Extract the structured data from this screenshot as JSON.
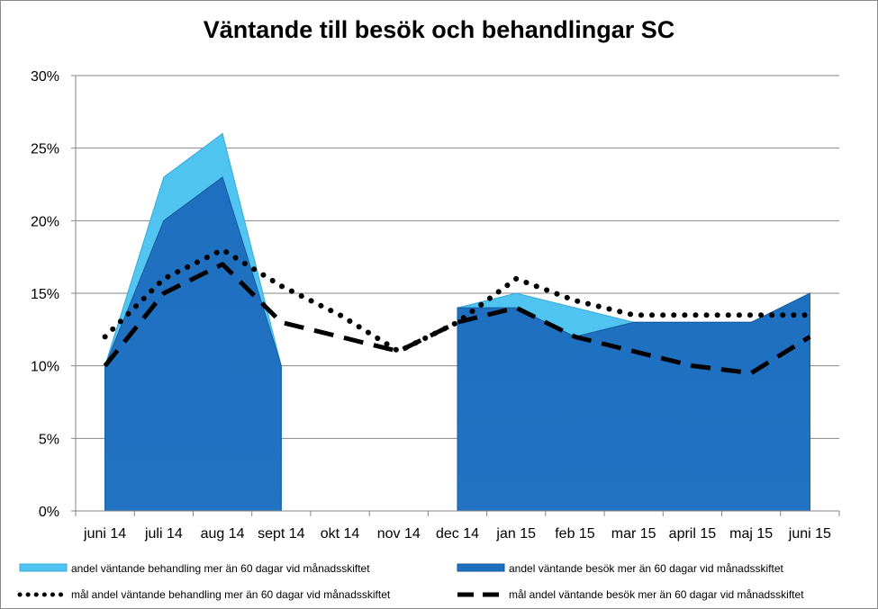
{
  "chart_data": {
    "type": "area",
    "title": "Väntande till besök och behandlingar SC",
    "xlabel": "",
    "ylabel": "",
    "ylim": [
      0,
      0.3
    ],
    "y_ticks": [
      "0%",
      "5%",
      "10%",
      "15%",
      "20%",
      "25%",
      "30%"
    ],
    "y_tick_values": [
      0,
      0.05,
      0.1,
      0.15,
      0.2,
      0.25,
      0.3
    ],
    "grid": true,
    "legend_position": "bottom",
    "categories": [
      "juni 14",
      "juli 14",
      "aug 14",
      "sept 14",
      "okt 14",
      "nov 14",
      "dec 14",
      "jan 15",
      "feb 15",
      "mar 15",
      "april 15",
      "maj 15",
      "juni 15"
    ],
    "series": [
      {
        "name": "andel väntande behandling mer än 60 dagar vid månadsskiftet",
        "kind": "area",
        "color": "#4fc4f0",
        "values": [
          0.1,
          0.23,
          0.26,
          0.1,
          null,
          null,
          0.14,
          0.15,
          0.14,
          0.13,
          0.13,
          0.13,
          0.15
        ]
      },
      {
        "name": "andel väntande besök mer än 60 dagar vid månadsskiftet",
        "kind": "area",
        "color": "#1f6fc0",
        "values": [
          0.1,
          0.2,
          0.23,
          0.1,
          null,
          null,
          0.14,
          0.14,
          0.12,
          0.13,
          0.13,
          0.13,
          0.15
        ]
      },
      {
        "name": "mål andel väntande behandling mer än 60 dagar vid månadsskiftet",
        "kind": "dotted-line",
        "color": "#000000",
        "values": [
          0.12,
          0.16,
          0.18,
          0.155,
          0.135,
          0.11,
          0.13,
          0.16,
          0.145,
          0.135,
          0.135,
          0.135,
          0.135
        ]
      },
      {
        "name": "mål andel  väntande besök mer än 60 dagar vid månadsskiftet",
        "kind": "dashed-line",
        "color": "#000000",
        "values": [
          0.1,
          0.15,
          0.17,
          0.13,
          0.12,
          0.11,
          0.13,
          0.14,
          0.12,
          0.11,
          0.1,
          0.095,
          0.12
        ]
      }
    ]
  }
}
